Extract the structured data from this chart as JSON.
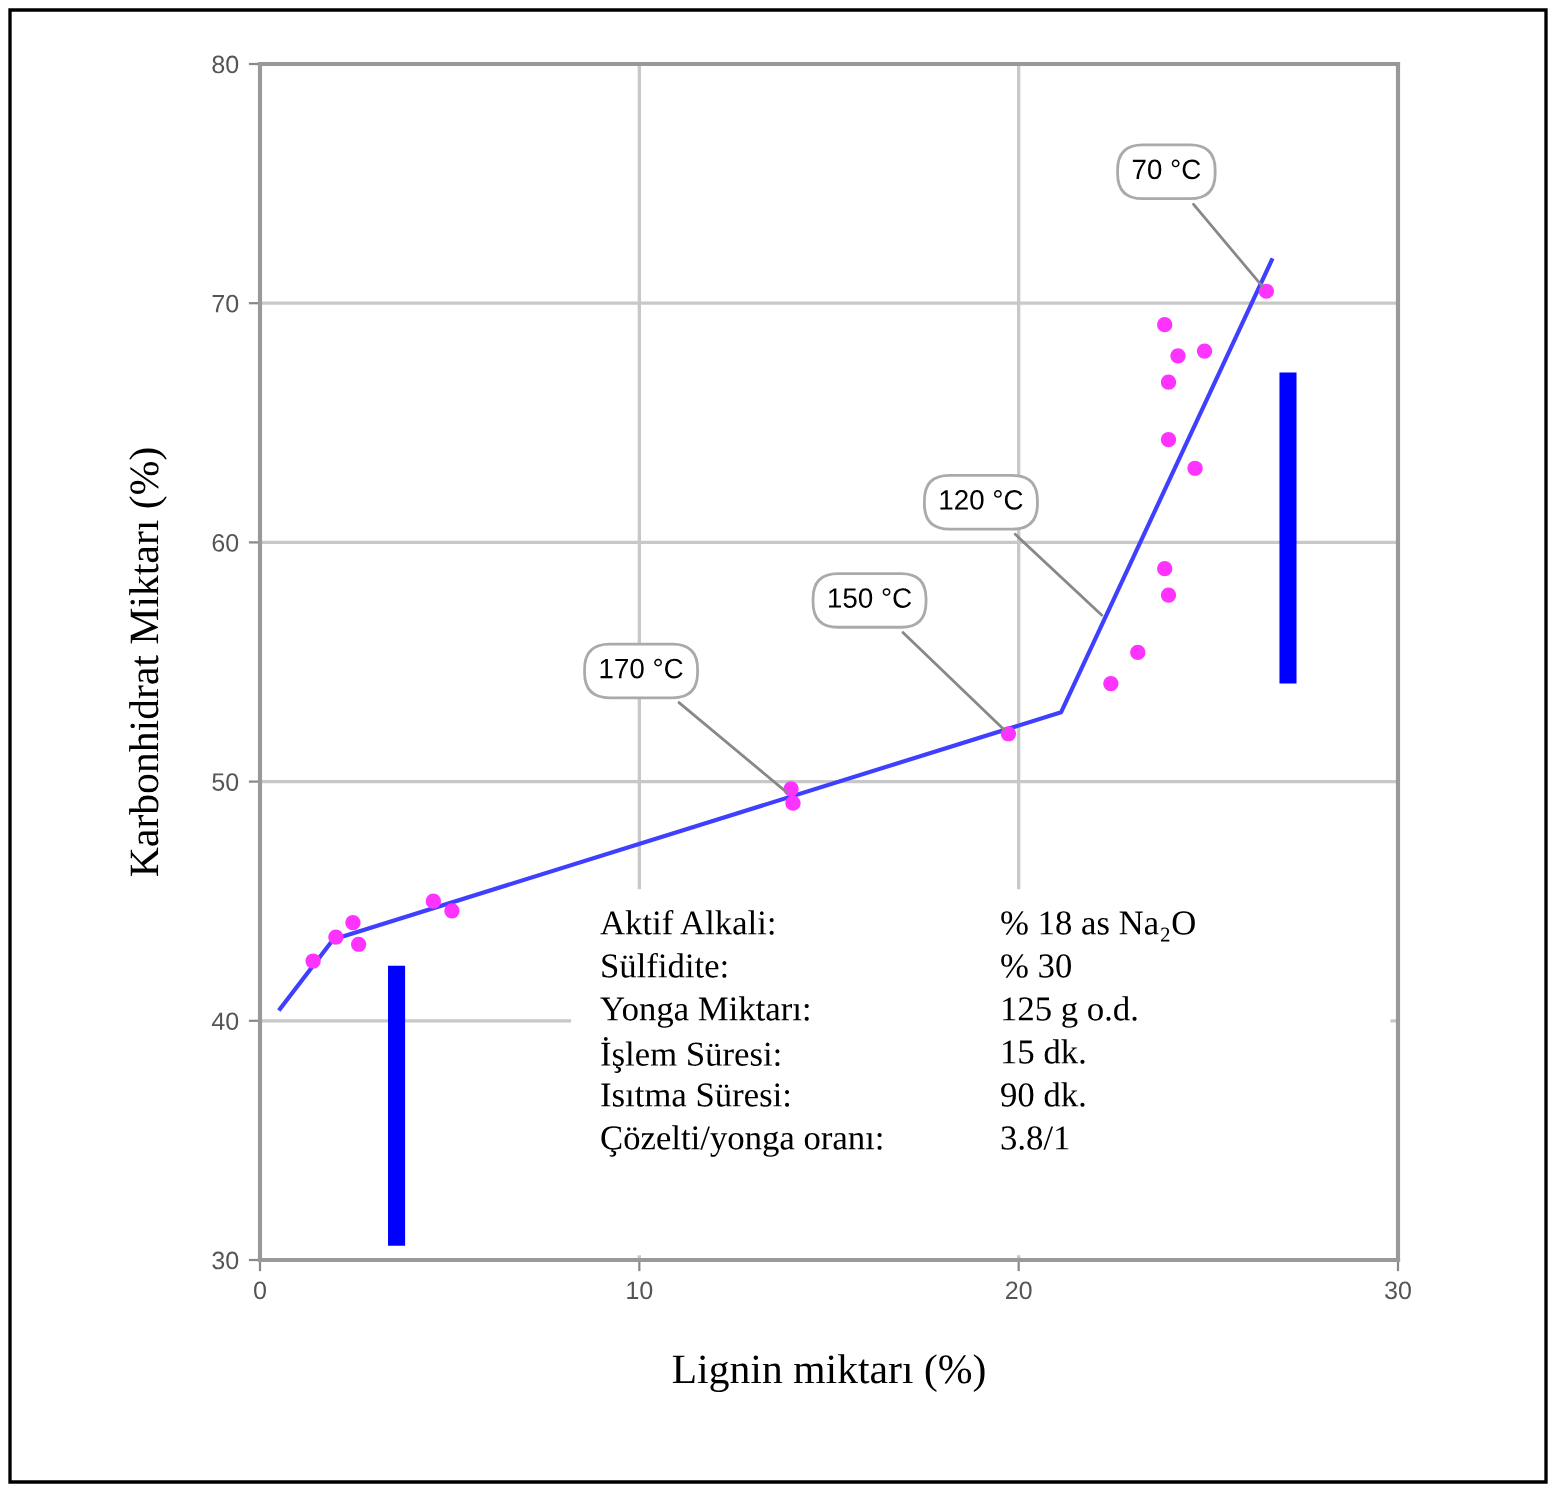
{
  "chart_data": {
    "type": "scatter",
    "xlabel": "Lignin miktarı (%)",
    "ylabel": "Karbonhidrat Miktarı (%)",
    "xlim": [
      0,
      30
    ],
    "ylim": [
      30,
      80
    ],
    "xticks": [
      0,
      10,
      20,
      30
    ],
    "yticks": [
      30,
      40,
      50,
      60,
      70,
      80
    ],
    "grid": true,
    "legend": false,
    "series": [
      {
        "color": "#ff33ff",
        "marker": "circle",
        "x": [
          1.4,
          2.0,
          2.45,
          2.6,
          4.57,
          5.06,
          14.0,
          14.05,
          19.73,
          22.43,
          23.14,
          23.85,
          23.95,
          24.65,
          23.95,
          23.95,
          24.2,
          24.9,
          23.85,
          26.53
        ],
        "values": [
          42.5,
          43.5,
          44.1,
          43.2,
          45.0,
          44.6,
          49.7,
          49.1,
          52.0,
          54.1,
          55.4,
          58.9,
          57.8,
          63.1,
          64.3,
          66.7,
          67.8,
          68.0,
          69.1,
          70.5
        ]
      },
      {
        "type": "line",
        "color": "#3f3fff",
        "line_style": "solid",
        "marker": "none",
        "x": [
          0.53,
          1.93,
          21.12,
          26.67
        ],
        "values": [
          40.5,
          43.4,
          52.9,
          71.8
        ]
      },
      {
        "type": "bar",
        "color": "#0000ff",
        "x": [
          3.6,
          27.1
        ],
        "base": [
          30.6,
          54.1
        ],
        "values": [
          11.7,
          13.0
        ]
      }
    ],
    "annotations": [
      {
        "text": "70 °C",
        "x": 26.53,
        "y": 70.5
      },
      {
        "text": "120 °C",
        "x": 22.3,
        "y": 56.8
      },
      {
        "text": "150 °C",
        "x": 19.73,
        "y": 52.0
      },
      {
        "text": "170 °C",
        "x": 14.0,
        "y": 49.4
      },
      "Aktif Alkali:",
      "% 18 as Na₂O",
      "Sülfidite:",
      "% 30",
      "Yonga Miktarı:",
      "125 g o.d.",
      "İşlem Süresi:",
      "15 dk.",
      "Isıtma Süresi:",
      "90 dk.",
      "Çözelti/yonga oranı:",
      "3.8/1"
    ]
  }
}
